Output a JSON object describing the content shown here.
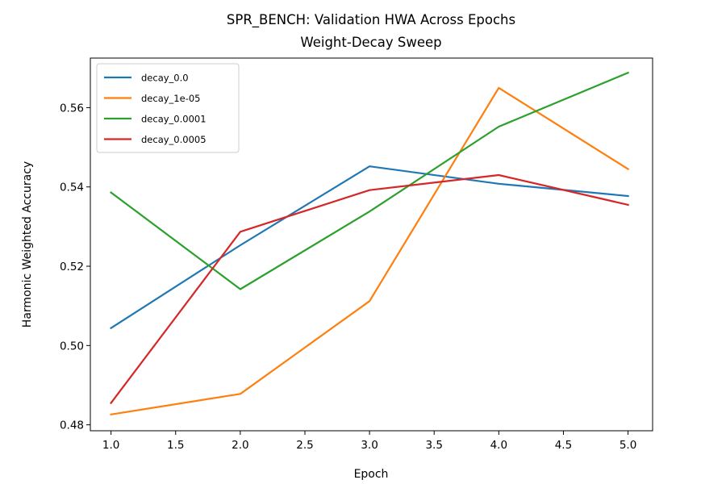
{
  "chart_data": {
    "type": "line",
    "title": "SPR_BENCH: Validation HWA Across Epochs",
    "subtitle": "Weight-Decay Sweep",
    "xlabel": "Epoch",
    "ylabel": "Harmonic Weighted Accuracy",
    "xlim": [
      0.84,
      5.19
    ],
    "ylim": [
      0.4785,
      0.5725
    ],
    "x_ticks": [
      "1.0",
      "1.5",
      "2.0",
      "2.5",
      "3.0",
      "3.5",
      "4.0",
      "4.5",
      "5.0"
    ],
    "y_ticks": [
      "0.48",
      "0.50",
      "0.52",
      "0.54",
      "0.56"
    ],
    "grid": false,
    "legend_position": "top-left",
    "x": [
      1,
      2,
      3,
      4,
      5
    ],
    "series": [
      {
        "name": "decay_0.0",
        "color": "#1f77b4",
        "values": [
          0.5044,
          0.5253,
          0.5452,
          0.5408,
          0.5377
        ]
      },
      {
        "name": "decay_1e-05",
        "color": "#ff7f0e",
        "values": [
          0.4826,
          0.4878,
          0.5112,
          0.565,
          0.5445
        ]
      },
      {
        "name": "decay_0.0001",
        "color": "#2ca02c",
        "values": [
          0.5386,
          0.5142,
          0.5338,
          0.5552,
          0.5688
        ]
      },
      {
        "name": "decay_0.0005",
        "color": "#d62728",
        "values": [
          0.4855,
          0.5287,
          0.5392,
          0.543,
          0.5355
        ]
      }
    ]
  }
}
